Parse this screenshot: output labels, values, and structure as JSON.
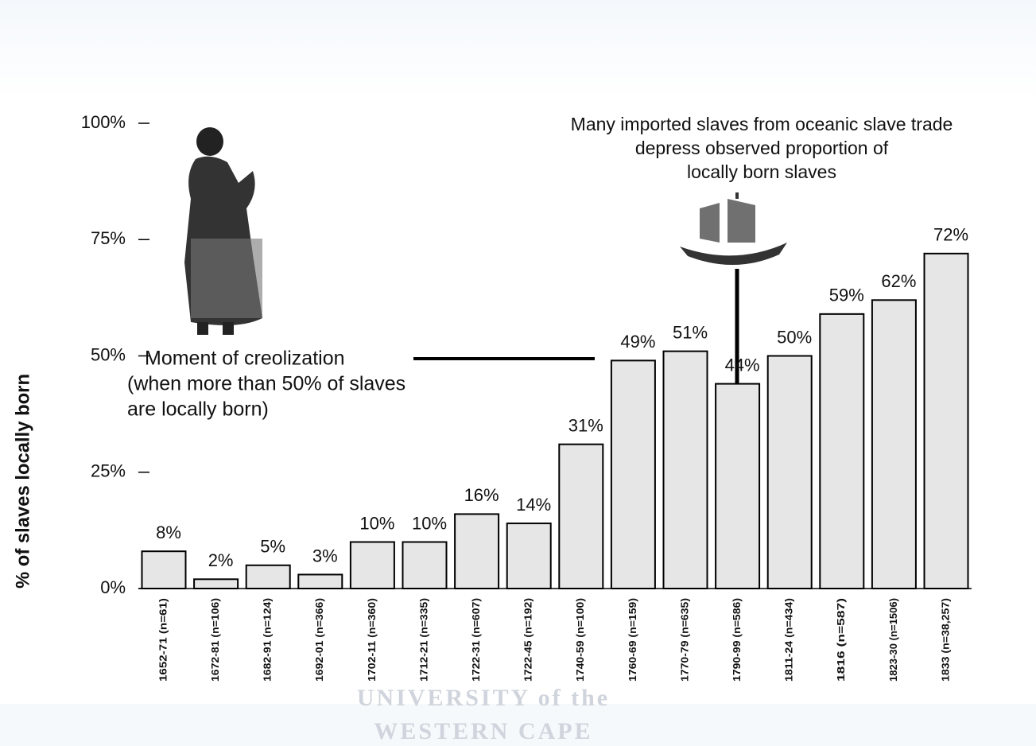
{
  "chart_data": {
    "type": "bar",
    "y_label": "% of slaves locally born",
    "categories": [
      "1652-71 (n=61)",
      "1672-81 (n=106)",
      "1682-91 (n=124)",
      "1692-01 (n=366)",
      "1702-11 (n=360)",
      "1712-21 (n=335)",
      "1722-31 (n=607)",
      "1722-45 (n=192)",
      "1740-59 (n=100)",
      "1760-69 (n=159)",
      "1770-79 (n=635)",
      "1790-99 (n=586)",
      "1811-24 (n=434)",
      "1816 (n=587)",
      "1823-30 (n=1506)",
      "1833 (n=38,257)"
    ],
    "values": [
      8,
      2,
      5,
      3,
      10,
      10,
      16,
      14,
      31,
      49,
      51,
      44,
      50,
      59,
      62,
      72
    ],
    "value_labels": [
      "8%",
      "2%",
      "5%",
      "3%",
      "10%",
      "10%",
      "16%",
      "14%",
      "31%",
      "49%",
      "51%",
      "44%",
      "50%",
      "59%",
      "62%",
      "72%"
    ],
    "color": "#e6e6e6",
    "ylim": [
      0,
      100
    ],
    "yticks": [
      {
        "value": 0,
        "label": "0%"
      },
      {
        "value": 25,
        "label": "25%"
      },
      {
        "value": 50,
        "label": "50%"
      },
      {
        "value": 75,
        "label": "75%"
      },
      {
        "value": 100,
        "label": "100%"
      }
    ],
    "annotations": [
      {
        "lines": [
          "Moment of creolization",
          "(when more than 50% of slaves",
          "are locally born)"
        ]
      },
      {
        "lines": [
          "Many imported slaves from oceanic slave trade",
          "depress  observed proportion of",
          "locally born slaves"
        ]
      }
    ],
    "watermark": [
      "UNIVERSITY of the",
      "WESTERN CAPE"
    ]
  }
}
